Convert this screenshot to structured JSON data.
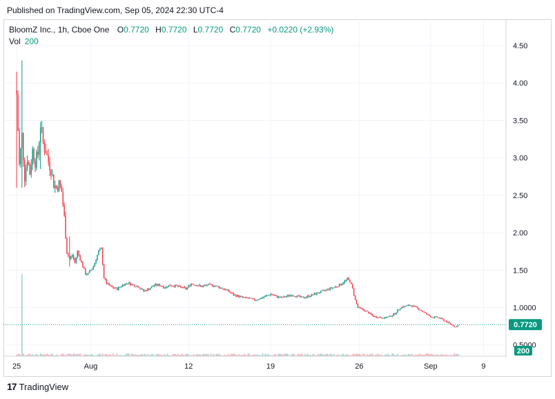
{
  "published": "Published on TradingView.com, Sep 05, 2024 22:30 UTC-4",
  "legend": {
    "symbol": "BloomZ Inc., 1h, Cboe One",
    "o_label": "O",
    "o": "0.7720",
    "h_label": "H",
    "h": "0.7720",
    "l_label": "L",
    "l": "0.7720",
    "c_label": "C",
    "c": "0.7720",
    "change": "+0.0220 (+2.93%)"
  },
  "vol_legend": {
    "label": "Vol",
    "value": "200"
  },
  "price_badge": "0.7720",
  "volume_badge": "200",
  "footer": {
    "brand": "TradingView"
  },
  "colors": {
    "up": "#089981",
    "down": "#f23645",
    "grid": "#f0f3fa",
    "last_line": "#089981"
  },
  "chart_data": {
    "type": "candlestick",
    "y_ticks": [
      "4.50",
      "4.00",
      "3.50",
      "3.00",
      "2.50",
      "2.00",
      "1.50",
      "1.0000",
      "0.5000"
    ],
    "y_tick_values": [
      4.5,
      4.0,
      3.5,
      3.0,
      2.5,
      2.0,
      1.5,
      1.0,
      0.5
    ],
    "x_ticks": [
      "25",
      "Aug",
      "12",
      "19",
      "26",
      "Sep",
      "9"
    ],
    "x_tick_values": [
      0,
      56,
      130,
      192,
      259,
      313,
      353
    ],
    "last_price": 0.772,
    "ylim": [
      0.35,
      4.85
    ],
    "xlim": [
      -10,
      370
    ],
    "anchors": [
      [
        0,
        3.85
      ],
      [
        2,
        2.9
      ],
      [
        4,
        3.3
      ],
      [
        6,
        2.75
      ],
      [
        8,
        3.0
      ],
      [
        10,
        2.8
      ],
      [
        12,
        3.1
      ],
      [
        14,
        2.95
      ],
      [
        16,
        3.05
      ],
      [
        18,
        3.45
      ],
      [
        20,
        3.2
      ],
      [
        22,
        3.1
      ],
      [
        24,
        2.95
      ],
      [
        26,
        2.85
      ],
      [
        28,
        2.65
      ],
      [
        30,
        2.6
      ],
      [
        32,
        2.65
      ],
      [
        34,
        2.55
      ],
      [
        36,
        2.2
      ],
      [
        38,
        1.75
      ],
      [
        40,
        1.65
      ],
      [
        42,
        1.7
      ],
      [
        44,
        1.6
      ],
      [
        46,
        1.75
      ],
      [
        48,
        1.65
      ],
      [
        50,
        1.55
      ],
      [
        52,
        1.45
      ],
      [
        54,
        1.45
      ],
      [
        56,
        1.5
      ],
      [
        58,
        1.55
      ],
      [
        60,
        1.65
      ],
      [
        62,
        1.75
      ],
      [
        64,
        1.78
      ],
      [
        66,
        1.4
      ],
      [
        68,
        1.32
      ],
      [
        72,
        1.27
      ],
      [
        76,
        1.25
      ],
      [
        80,
        1.3
      ],
      [
        84,
        1.33
      ],
      [
        88,
        1.3
      ],
      [
        92,
        1.28
      ],
      [
        96,
        1.22
      ],
      [
        100,
        1.25
      ],
      [
        104,
        1.3
      ],
      [
        108,
        1.3
      ],
      [
        112,
        1.27
      ],
      [
        116,
        1.3
      ],
      [
        120,
        1.29
      ],
      [
        124,
        1.27
      ],
      [
        128,
        1.25
      ],
      [
        132,
        1.32
      ],
      [
        136,
        1.3
      ],
      [
        140,
        1.28
      ],
      [
        144,
        1.3
      ],
      [
        148,
        1.3
      ],
      [
        152,
        1.28
      ],
      [
        156,
        1.25
      ],
      [
        160,
        1.22
      ],
      [
        164,
        1.17
      ],
      [
        168,
        1.15
      ],
      [
        172,
        1.13
      ],
      [
        176,
        1.12
      ],
      [
        180,
        1.1
      ],
      [
        184,
        1.12
      ],
      [
        188,
        1.15
      ],
      [
        192,
        1.18
      ],
      [
        196,
        1.15
      ],
      [
        200,
        1.13
      ],
      [
        204,
        1.15
      ],
      [
        208,
        1.17
      ],
      [
        212,
        1.15
      ],
      [
        216,
        1.13
      ],
      [
        220,
        1.15
      ],
      [
        224,
        1.17
      ],
      [
        228,
        1.2
      ],
      [
        232,
        1.22
      ],
      [
        236,
        1.25
      ],
      [
        240,
        1.27
      ],
      [
        244,
        1.3
      ],
      [
        248,
        1.35
      ],
      [
        250,
        1.38
      ],
      [
        252,
        1.35
      ],
      [
        254,
        1.25
      ],
      [
        256,
        1.1
      ],
      [
        258,
        1.0
      ],
      [
        262,
        0.97
      ],
      [
        266,
        0.93
      ],
      [
        270,
        0.88
      ],
      [
        274,
        0.87
      ],
      [
        278,
        0.86
      ],
      [
        282,
        0.88
      ],
      [
        286,
        0.92
      ],
      [
        290,
        1.0
      ],
      [
        294,
        1.02
      ],
      [
        298,
        1.03
      ],
      [
        302,
        1.0
      ],
      [
        306,
        0.96
      ],
      [
        310,
        0.91
      ],
      [
        314,
        0.87
      ],
      [
        318,
        0.87
      ],
      [
        322,
        0.84
      ],
      [
        326,
        0.8
      ],
      [
        330,
        0.76
      ],
      [
        332,
        0.74
      ],
      [
        334,
        0.77
      ]
    ],
    "spikes": [
      [
        0,
        4.15,
        2.6
      ],
      [
        4,
        4.3,
        2.6
      ],
      [
        18,
        3.48,
        2.85
      ],
      [
        40,
        1.95,
        1.55
      ]
    ],
    "volume": {
      "max": 1500000,
      "spike_index": 4,
      "spike_value": 1500000,
      "last_value": 200
    }
  }
}
